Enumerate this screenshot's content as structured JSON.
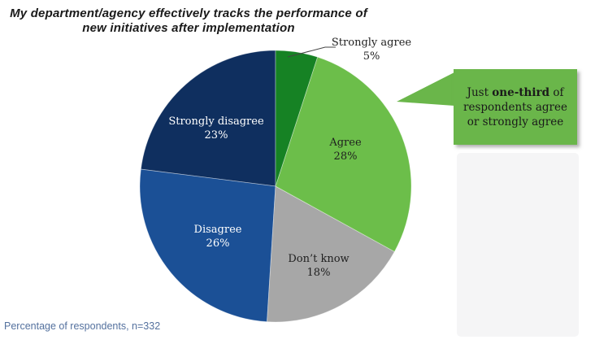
{
  "title": {
    "line1": "My department/agency effectively tracks the performance of",
    "line2": "new initiatives  after implementation"
  },
  "chart_data": {
    "type": "pie",
    "title": "My department/agency effectively tracks the performance of new initiatives after implementation",
    "unit": "percent of respondents",
    "n": 332,
    "direction": "clockwise",
    "start_angle_deg": 0,
    "slices": [
      {
        "label": "Strongly agree",
        "value": 5,
        "pct_label": "5%",
        "color": "#168224",
        "text_color": "#1f1f1f",
        "label_placement": "outside"
      },
      {
        "label": "Agree",
        "value": 28,
        "pct_label": "28%",
        "color": "#6cbe4a",
        "text_color": "#1f1f1f",
        "label_placement": "inside"
      },
      {
        "label": "Don’t know",
        "value": 18,
        "pct_label": "18%",
        "color": "#a7a7a7",
        "text_color": "#1f1f1f",
        "label_placement": "inside"
      },
      {
        "label": "Disagree",
        "value": 26,
        "pct_label": "26%",
        "color": "#1b5096",
        "text_color": "#ffffff",
        "label_placement": "inside"
      },
      {
        "label": "Strongly disagree",
        "value": 23,
        "pct_label": "23%",
        "color": "#0f2f5f",
        "text_color": "#ffffff",
        "label_placement": "inside"
      }
    ],
    "annotation": "Just one-third of respondents agree or strongly agree",
    "legend": "none"
  },
  "callout": {
    "prefix": "Just ",
    "bold": "one-third",
    "suffix": " of respondents agree or strongly agree",
    "bg_color": "#6ab64a"
  },
  "footer": {
    "text": "Percentage of respondents, n=332",
    "color": "#54719e"
  }
}
